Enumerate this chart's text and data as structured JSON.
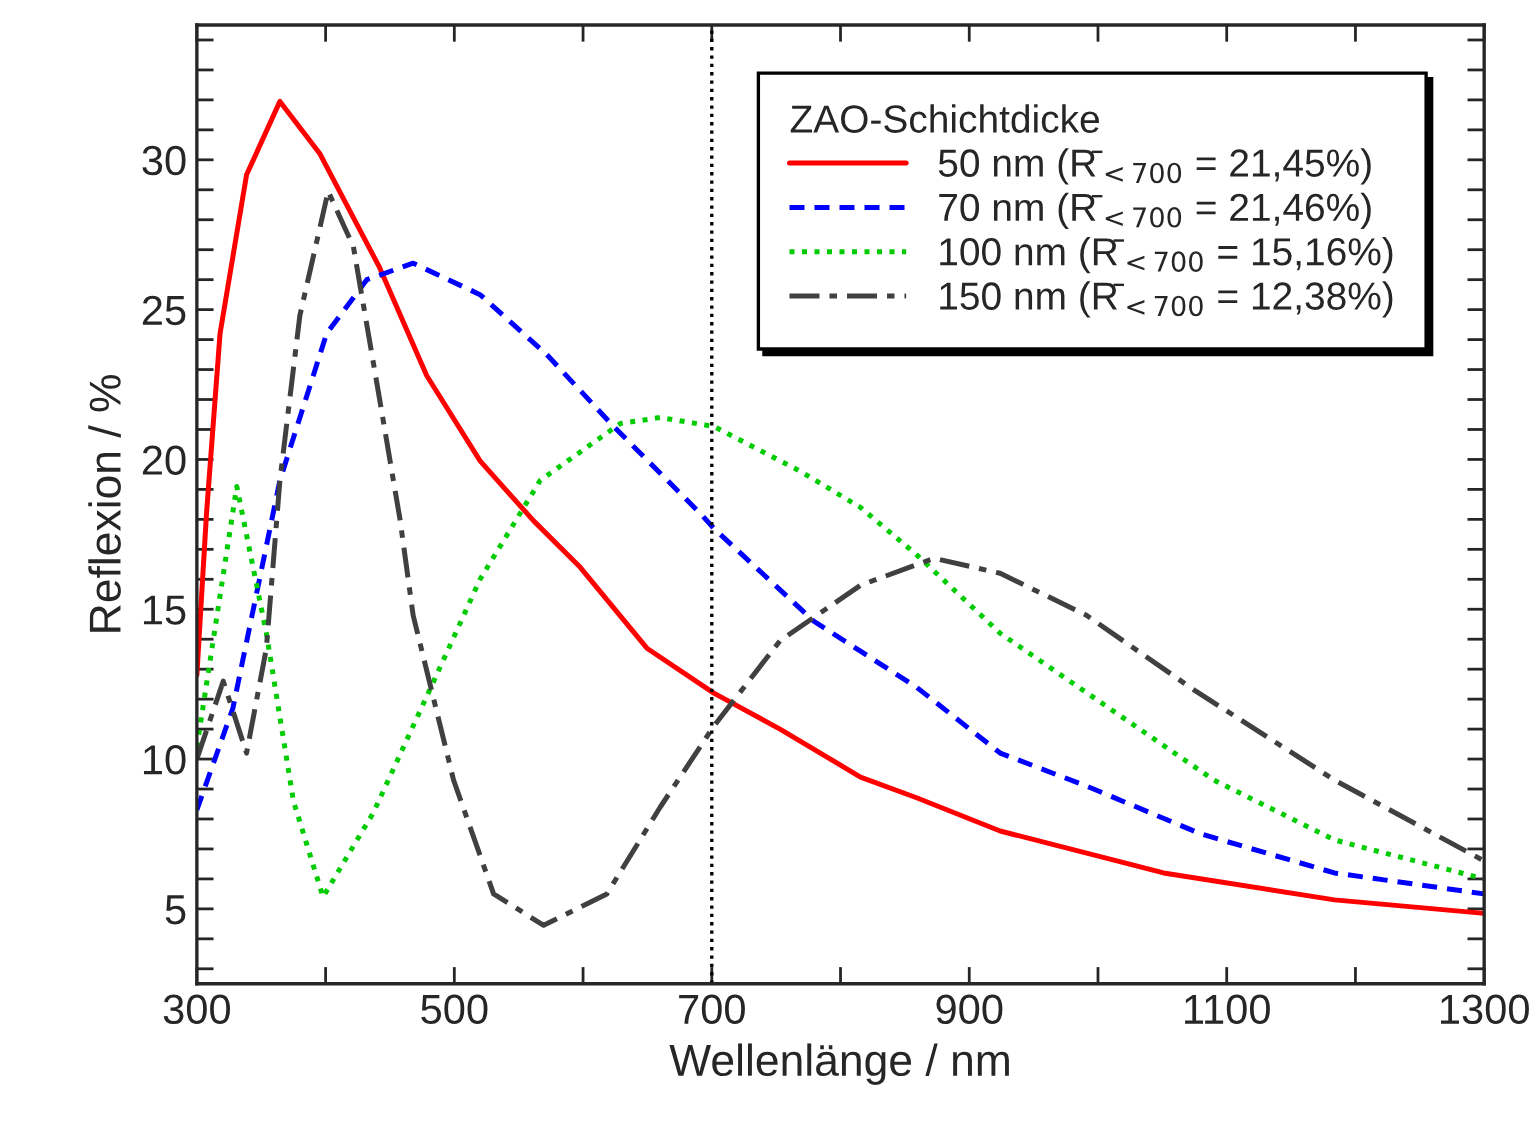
{
  "chart_data": {
    "type": "line",
    "xlabel": "Wellenlänge / nm",
    "ylabel": "Reflexion / %",
    "legend_title": "ZAO-Schichtdicke",
    "legend": "top right",
    "grid": false,
    "marker": "none",
    "xlim": [
      300,
      1300
    ],
    "ylim": [
      2.5,
      34.5
    ],
    "xticks": [
      300,
      {
        "value": 400,
        "label": null
      },
      500,
      {
        "value": 600,
        "label": null
      },
      700,
      {
        "value": 800,
        "label": null
      },
      900,
      {
        "value": 1000,
        "label": null
      },
      1100,
      {
        "value": 1200,
        "label": null
      },
      1300
    ],
    "yticks": [
      {
        "value": 3,
        "label": null
      },
      {
        "value": 4,
        "label": null
      },
      5,
      {
        "value": 6,
        "label": null
      },
      {
        "value": 7,
        "label": null
      },
      {
        "value": 8,
        "label": null
      },
      {
        "value": 9,
        "label": null
      },
      10,
      {
        "value": 11,
        "label": null
      },
      {
        "value": 12,
        "label": null
      },
      {
        "value": 13,
        "label": null
      },
      {
        "value": 14,
        "label": null
      },
      15,
      {
        "value": 16,
        "label": null
      },
      {
        "value": 17,
        "label": null
      },
      {
        "value": 18,
        "label": null
      },
      {
        "value": 19,
        "label": null
      },
      20,
      {
        "value": 21,
        "label": null
      },
      {
        "value": 22,
        "label": null
      },
      {
        "value": 23,
        "label": null
      },
      {
        "value": 24,
        "label": null
      },
      25,
      {
        "value": 26,
        "label": null
      },
      {
        "value": 27,
        "label": null
      },
      {
        "value": 28,
        "label": null
      },
      {
        "value": 29,
        "label": null
      },
      30,
      {
        "value": 31,
        "label": null
      },
      {
        "value": 32,
        "label": null
      },
      {
        "value": 33,
        "label": null
      },
      {
        "value": 34,
        "label": null
      }
    ],
    "ref_lines": [
      {
        "axis": "x",
        "value": 700,
        "color": "#000000",
        "line_style": "dotted"
      }
    ],
    "series": [
      {
        "name": "50 nm (R̄$_{<700}$ = 21,45%)",
        "color": "#ff0000",
        "line_style": "solid",
        "x": [
          300,
          307.5,
          318,
          338.6,
          364.5,
          395.6,
          442,
          478.5,
          520,
          561.6,
          597.8,
          649.6,
          701.6,
          753,
          815.5,
          859.6,
          924,
          1051,
          1183.7,
          1300
        ],
        "values": [
          12.8,
          18.2,
          24.2,
          29.5,
          31.95,
          30.2,
          26.4,
          22.8,
          19.95,
          17.95,
          16.4,
          13.7,
          12.2,
          11.0,
          9.4,
          8.7,
          7.6,
          6.2,
          5.3,
          4.85
        ]
      },
      {
        "name": "70 nm (R̄$_{<700}$ = 21,46%)",
        "color": "#0000ff",
        "line_style": "dashed",
        "x": [
          300,
          328,
          364.5,
          400.8,
          432,
          468,
          520,
          571.8,
          623.8,
          691,
          701.6,
          779.3,
          815.5,
          859,
          924,
          991,
          1080,
          1183.7,
          1300
        ],
        "values": [
          8.3,
          11.7,
          19.3,
          24.2,
          26.0,
          26.55,
          25.5,
          23.5,
          21.1,
          18.2,
          17.7,
          14.6,
          13.6,
          12.4,
          10.2,
          9.1,
          7.5,
          6.2,
          5.5
        ]
      },
      {
        "name": "100 nm (R̄$_{<700}$ = 15,16%)",
        "color": "#00cc00",
        "line_style": "dotted",
        "x": [
          300,
          331,
          354,
          375,
          398,
          437,
          484,
          520,
          566.7,
          629,
          660,
          701.6,
          769,
          815.5,
          859.6,
          924,
          991.7,
          1090,
          1183.7,
          1300
        ],
        "values": [
          10.4,
          19.1,
          14.2,
          8.6,
          5.4,
          8.2,
          12.6,
          16.0,
          19.3,
          21.2,
          21.4,
          21.1,
          19.6,
          18.4,
          16.8,
          14.2,
          12.2,
          9.3,
          7.3,
          6.0
        ]
      },
      {
        "name": "150 nm (R̄$_{<700}$ = 12,38%)",
        "color": "#404040",
        "line_style": "dashdot",
        "x": [
          300,
          320.5,
          338.6,
          354,
          364.5,
          380,
          402,
          421.6,
          442,
          457.8,
          468,
          499.4,
          530.5,
          569.4,
          618.5,
          660,
          701.6,
          753,
          815.5,
          872.6,
          924,
          991,
          1074.8,
          1183.7,
          1300
        ],
        "values": [
          10.0,
          12.6,
          10.2,
          13.7,
          19.3,
          24.8,
          28.95,
          27.1,
          22.0,
          18.0,
          14.8,
          9.3,
          5.5,
          4.45,
          5.5,
          8.4,
          11.1,
          13.95,
          15.8,
          16.7,
          16.2,
          14.8,
          12.3,
          9.3,
          6.6
        ]
      }
    ]
  }
}
